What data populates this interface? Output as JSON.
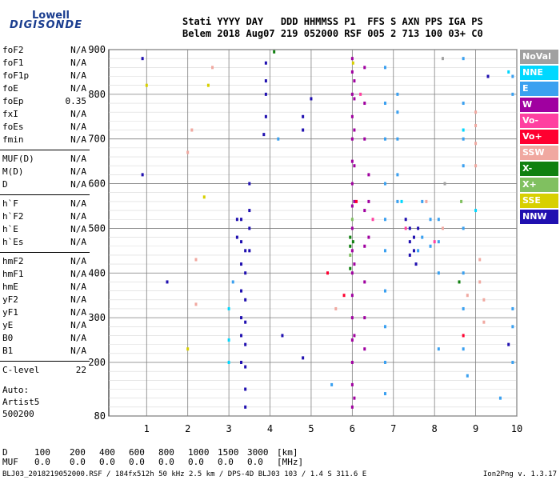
{
  "logo": {
    "line1": "Lowell",
    "line2": "DIGISONDE"
  },
  "header": {
    "line1": "Stati YYYY DAY   DDD HHMMSS P1  FFS S AXN PPS IGA PS",
    "line2": "Belem 2018 Aug07 219 052000 RSF 005 2 713 100 03+ C0"
  },
  "params_groups": [
    [
      [
        "foF2",
        "N/A"
      ],
      [
        "foF1",
        "N/A"
      ],
      [
        "foF1p",
        "N/A"
      ],
      [
        "foE",
        "N/A"
      ],
      [
        "foEp",
        "0.35"
      ],
      [
        "fxI",
        "N/A"
      ],
      [
        "foEs",
        "N/A"
      ],
      [
        "fmin",
        "N/A"
      ]
    ],
    [
      [
        "MUF(D)",
        "N/A"
      ],
      [
        "M(D)",
        "N/A"
      ],
      [
        "D",
        "N/A"
      ]
    ],
    [
      [
        "h`F",
        "N/A"
      ],
      [
        "h`F2",
        "N/A"
      ],
      [
        "h`E",
        "N/A"
      ],
      [
        "h`Es",
        "N/A"
      ]
    ],
    [
      [
        "hmF2",
        "N/A"
      ],
      [
        "hmF1",
        "N/A"
      ],
      [
        "hmE",
        "N/A"
      ],
      [
        "yF2",
        "N/A"
      ],
      [
        "yF1",
        "N/A"
      ],
      [
        "yE",
        "N/A"
      ],
      [
        "B0",
        "N/A"
      ],
      [
        "B1",
        "N/A"
      ]
    ],
    [
      [
        "C-level",
        "22"
      ]
    ]
  ],
  "auto": {
    "line1": "Auto:",
    "line2": "Artist5",
    "line3": "500200"
  },
  "bottom_table": {
    "d_label": "D",
    "d_values": [
      "100",
      "200",
      "400",
      "600",
      "800",
      "1000",
      "1500",
      "3000",
      "[km]"
    ],
    "muf_label": "MUF",
    "muf_values": [
      "0.0",
      "0.0",
      "0.0",
      "0.0",
      "0.0",
      "0.0",
      "0.0",
      "0.0",
      "[MHz]"
    ]
  },
  "footer": "BLJ03_2018219052000.RSF / 184fx512h 50 kHz 2.5 km / DPS-4D BLJ03 103 / 1.4 S 311.6 E",
  "version": "Ion2Png v. 1.3.17",
  "legend": [
    {
      "label": "NoVal",
      "color": "#a0a0a0"
    },
    {
      "label": "NNE",
      "color": "#00d8ff"
    },
    {
      "label": "E",
      "color": "#3aa0f0"
    },
    {
      "label": "W",
      "color": "#a000a0"
    },
    {
      "label": "Vo-",
      "color": "#ff40a0"
    },
    {
      "label": "Vo+",
      "color": "#ff0030"
    },
    {
      "label": "SSW",
      "color": "#f0a8a0"
    },
    {
      "label": "X-",
      "color": "#108010"
    },
    {
      "label": "X+",
      "color": "#80c060"
    },
    {
      "label": "SSE",
      "color": "#d8d000"
    },
    {
      "label": "NNW",
      "color": "#2010b0"
    }
  ],
  "chart_data": {
    "type": "scatter",
    "xlabel": "",
    "ylabel": "",
    "xlim": [
      0.8,
      10
    ],
    "ylim": [
      80,
      900
    ],
    "xticks": [
      1,
      2,
      3,
      4,
      5,
      6,
      7,
      8,
      9,
      10
    ],
    "yticks": [
      80,
      200,
      300,
      400,
      500,
      600,
      700,
      800,
      900
    ],
    "grid": true,
    "series": [
      {
        "name": "W",
        "color": "#a000a0",
        "points": [
          [
            6.0,
            100
          ],
          [
            6.0,
            150
          ],
          [
            6.0,
            200
          ],
          [
            6.0,
            250
          ],
          [
            6.0,
            300
          ],
          [
            6.0,
            350
          ],
          [
            6.0,
            400
          ],
          [
            6.0,
            450
          ],
          [
            6.0,
            500
          ],
          [
            6.0,
            550
          ],
          [
            6.0,
            600
          ],
          [
            6.0,
            650
          ],
          [
            6.0,
            700
          ],
          [
            6.0,
            750
          ],
          [
            6.0,
            800
          ],
          [
            6.0,
            850
          ],
          [
            6.0,
            880
          ],
          [
            6.05,
            120
          ],
          [
            6.05,
            260
          ],
          [
            6.05,
            420
          ],
          [
            6.05,
            560
          ],
          [
            6.05,
            640
          ],
          [
            6.05,
            720
          ],
          [
            6.05,
            790
          ],
          [
            6.05,
            830
          ],
          [
            6.3,
            230
          ],
          [
            6.3,
            300
          ],
          [
            6.3,
            380
          ],
          [
            6.3,
            460
          ],
          [
            6.3,
            540
          ],
          [
            6.3,
            700
          ],
          [
            6.3,
            780
          ],
          [
            6.3,
            860
          ],
          [
            6.4,
            480
          ],
          [
            6.4,
            560
          ],
          [
            6.4,
            620
          ]
        ]
      },
      {
        "name": "NNW",
        "color": "#2010b0",
        "points": [
          [
            3.2,
            480
          ],
          [
            3.2,
            520
          ],
          [
            3.3,
            200
          ],
          [
            3.3,
            260
          ],
          [
            3.3,
            300
          ],
          [
            3.3,
            360
          ],
          [
            3.3,
            420
          ],
          [
            3.3,
            470
          ],
          [
            3.3,
            520
          ],
          [
            3.4,
            100
          ],
          [
            3.4,
            140
          ],
          [
            3.4,
            190
          ],
          [
            3.4,
            240
          ],
          [
            3.4,
            290
          ],
          [
            3.4,
            340
          ],
          [
            3.4,
            400
          ],
          [
            3.4,
            450
          ],
          [
            3.5,
            450
          ],
          [
            3.5,
            500
          ],
          [
            3.5,
            540
          ],
          [
            3.5,
            600
          ],
          [
            3.9,
            750
          ],
          [
            3.9,
            800
          ],
          [
            3.9,
            830
          ],
          [
            3.9,
            870
          ],
          [
            3.85,
            710
          ],
          [
            4.8,
            720
          ],
          [
            4.8,
            750
          ],
          [
            5.0,
            790
          ],
          [
            7.4,
            440
          ],
          [
            7.4,
            470
          ],
          [
            7.4,
            500
          ],
          [
            7.5,
            450
          ],
          [
            7.5,
            480
          ],
          [
            7.55,
            420
          ],
          [
            7.6,
            500
          ],
          [
            7.3,
            520
          ],
          [
            0.9,
            620
          ],
          [
            0.9,
            880
          ],
          [
            1.5,
            380
          ],
          [
            4.3,
            260
          ],
          [
            4.8,
            210
          ],
          [
            9.8,
            240
          ],
          [
            9.3,
            840
          ]
        ]
      },
      {
        "name": "E",
        "color": "#3aa0f0",
        "points": [
          [
            6.8,
            130
          ],
          [
            6.8,
            200
          ],
          [
            6.8,
            280
          ],
          [
            6.8,
            360
          ],
          [
            6.8,
            450
          ],
          [
            6.8,
            520
          ],
          [
            6.8,
            600
          ],
          [
            6.8,
            700
          ],
          [
            6.8,
            780
          ],
          [
            6.8,
            860
          ],
          [
            7.1,
            560
          ],
          [
            7.1,
            620
          ],
          [
            7.1,
            700
          ],
          [
            7.1,
            760
          ],
          [
            7.1,
            800
          ],
          [
            7.6,
            450
          ],
          [
            7.7,
            480
          ],
          [
            7.7,
            560
          ],
          [
            7.9,
            520
          ],
          [
            7.9,
            460
          ],
          [
            8.1,
            230
          ],
          [
            8.1,
            400
          ],
          [
            8.1,
            470
          ],
          [
            8.1,
            520
          ],
          [
            8.7,
            230
          ],
          [
            8.7,
            320
          ],
          [
            8.7,
            400
          ],
          [
            8.7,
            500
          ],
          [
            8.7,
            640
          ],
          [
            8.7,
            700
          ],
          [
            8.7,
            780
          ],
          [
            8.7,
            880
          ],
          [
            9.9,
            200
          ],
          [
            9.9,
            280
          ],
          [
            9.9,
            320
          ],
          [
            9.9,
            800
          ],
          [
            9.9,
            840
          ],
          [
            8.8,
            170
          ],
          [
            9.6,
            120
          ],
          [
            5.5,
            150
          ],
          [
            3.1,
            380
          ],
          [
            4.2,
            700
          ]
        ]
      },
      {
        "name": "NNE",
        "color": "#00d8ff",
        "points": [
          [
            3.0,
            200
          ],
          [
            3.0,
            250
          ],
          [
            3.0,
            320
          ],
          [
            7.2,
            560
          ],
          [
            8.7,
            720
          ],
          [
            9.0,
            540
          ],
          [
            9.8,
            850
          ]
        ]
      },
      {
        "name": "SSW",
        "color": "#f0a8a0",
        "points": [
          [
            9.0,
            640
          ],
          [
            9.0,
            690
          ],
          [
            9.0,
            730
          ],
          [
            9.0,
            760
          ],
          [
            9.1,
            430
          ],
          [
            9.1,
            380
          ],
          [
            9.2,
            340
          ],
          [
            9.2,
            290
          ],
          [
            8.8,
            350
          ],
          [
            8.2,
            500
          ],
          [
            7.8,
            560
          ],
          [
            2.2,
            430
          ],
          [
            2.2,
            330
          ],
          [
            2.1,
            720
          ],
          [
            2.0,
            670
          ],
          [
            2.6,
            860
          ],
          [
            5.6,
            320
          ]
        ]
      },
      {
        "name": "Vo-",
        "color": "#ff40a0",
        "points": [
          [
            6.2,
            800
          ],
          [
            6.5,
            520
          ],
          [
            7.3,
            500
          ],
          [
            8.0,
            470
          ]
        ]
      },
      {
        "name": "Vo+",
        "color": "#ff0030",
        "points": [
          [
            5.4,
            400
          ],
          [
            5.8,
            350
          ],
          [
            6.1,
            560
          ],
          [
            8.7,
            260
          ]
        ]
      },
      {
        "name": "X-",
        "color": "#108010",
        "points": [
          [
            5.95,
            410
          ],
          [
            5.95,
            460
          ],
          [
            5.95,
            480
          ],
          [
            6.02,
            470
          ],
          [
            4.1,
            895
          ],
          [
            8.6,
            380
          ]
        ]
      },
      {
        "name": "X+",
        "color": "#80c060",
        "points": [
          [
            5.95,
            440
          ],
          [
            6.0,
            520
          ],
          [
            8.65,
            560
          ]
        ]
      },
      {
        "name": "SSE",
        "color": "#d8d000",
        "points": [
          [
            1.0,
            820
          ],
          [
            2.5,
            820
          ],
          [
            2.0,
            230
          ],
          [
            2.4,
            570
          ],
          [
            6.02,
            870
          ]
        ]
      },
      {
        "name": "NoVal",
        "color": "#a0a0a0",
        "points": [
          [
            8.2,
            880
          ],
          [
            8.25,
            600
          ]
        ]
      }
    ]
  }
}
